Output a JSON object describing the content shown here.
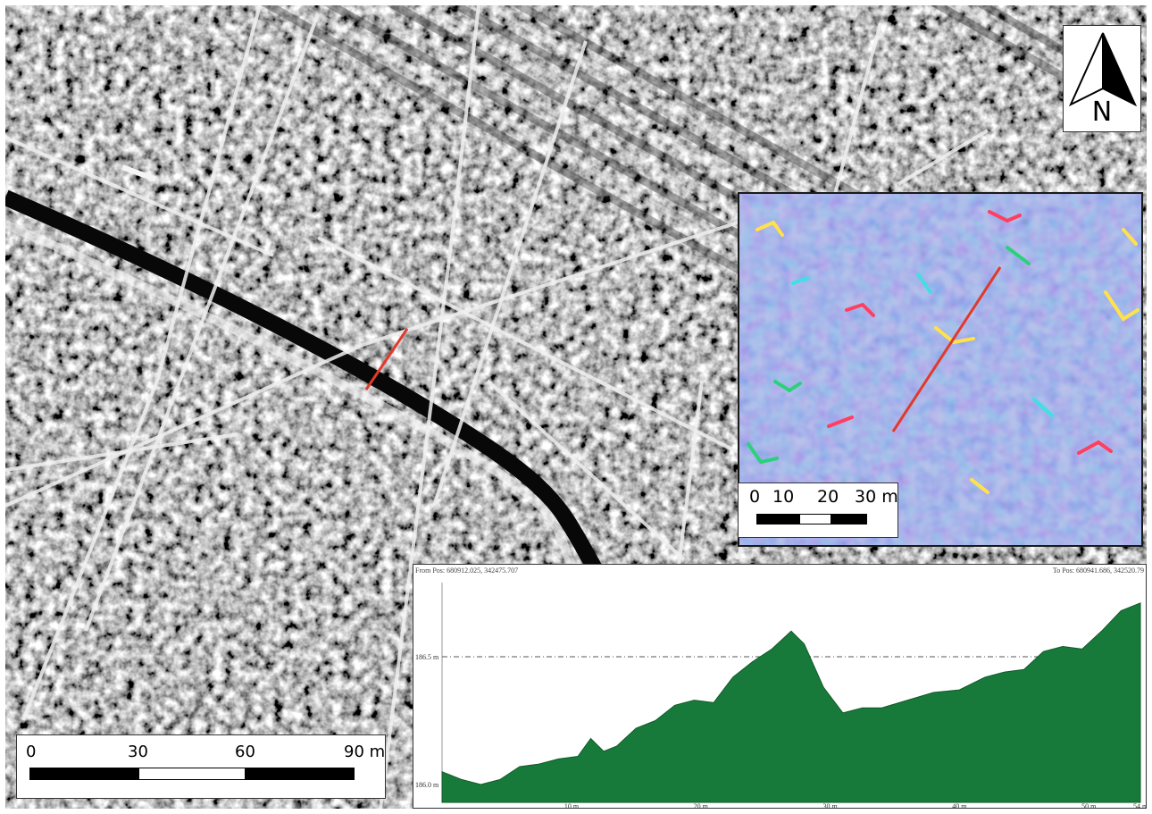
{
  "north_arrow": {
    "label": "N",
    "icon": "north-arrow-icon"
  },
  "main_scale": {
    "labels": [
      "0",
      "30",
      "60",
      "90 m"
    ],
    "segments": [
      "dark",
      "light",
      "dark"
    ]
  },
  "inset": {
    "scale_labels": [
      "0",
      "10",
      "20",
      "30 m"
    ],
    "segments": [
      "dark",
      "light",
      "dark"
    ]
  },
  "profile": {
    "from_pos": "From Pos: 680912.025, 342475.707",
    "to_pos": "To Pos: 680941.686, 342520.79",
    "y_labels": [
      "186.5 m",
      "186.0 m"
    ],
    "x_labels": [
      "10 m",
      "20 m",
      "30 m",
      "40 m",
      "50 m",
      "54 m"
    ],
    "fill_color": "#187a3a"
  },
  "colors": {
    "profile_line": "#e03a2a",
    "terrain_fill": "#187a3a",
    "inset_base": "#8a8cd8"
  },
  "chart_data": {
    "type": "area",
    "x": [
      0,
      1.5,
      3,
      4.5,
      6,
      7.5,
      9,
      10.5,
      11.5,
      12.5,
      13.5,
      15,
      16.5,
      18,
      19.5,
      21,
      22.5,
      24,
      25.5,
      27,
      28,
      29.5,
      31,
      32.5,
      34,
      36,
      38,
      40,
      42,
      43.5,
      45,
      46.5,
      48,
      49.5,
      51,
      52.5,
      54
    ],
    "values": [
      186.05,
      186.02,
      186.0,
      186.02,
      186.07,
      186.08,
      186.1,
      186.11,
      186.18,
      186.13,
      186.15,
      186.22,
      186.25,
      186.31,
      186.33,
      186.32,
      186.42,
      186.48,
      186.53,
      186.6,
      186.55,
      186.38,
      186.28,
      186.3,
      186.3,
      186.33,
      186.36,
      186.37,
      186.42,
      186.44,
      186.45,
      186.52,
      186.54,
      186.53,
      186.6,
      186.68,
      186.71
    ],
    "xlabel": "",
    "ylabel": "",
    "xlim": [
      0,
      54
    ],
    "ylim": [
      185.93,
      186.79
    ],
    "x_ticks": [
      10,
      20,
      30,
      40,
      50,
      54
    ],
    "y_gridlines": [
      186.5,
      186.0
    ],
    "grid": true
  }
}
